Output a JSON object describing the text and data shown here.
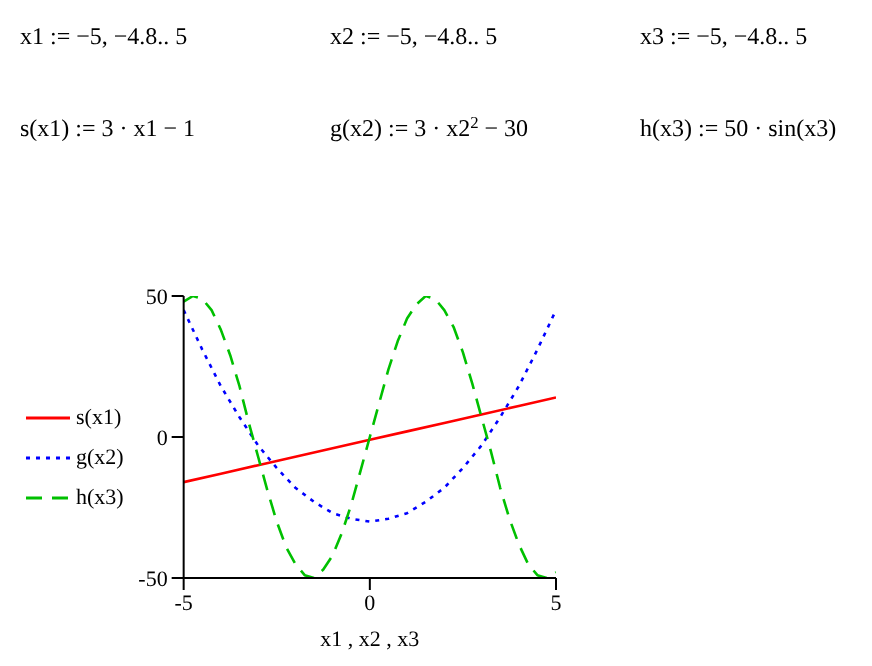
{
  "chart_data": {
    "type": "line",
    "xlabel": "x1 , x2 , x3",
    "annotations": [
      "x1 := −5, −4.8.. 5",
      "x2 := −5, −4.8.. 5",
      "x3 := −5, −4.8.. 5",
      "s(x1) := 3 · x1 − 1",
      "g(x2) := 3 · x2$^{2}$ − 30",
      "h(x3) := 50 · sin(x3)"
    ],
    "xlim": [
      -5,
      5
    ],
    "xticks": [
      -5,
      0,
      5
    ],
    "ylim": [
      -50,
      50
    ],
    "yticks": [
      -50,
      0,
      50
    ],
    "legend": "left",
    "grid": false,
    "marker": "none",
    "series": [
      {
        "name": "s(x1)",
        "color": "#ff0000",
        "line_style": "solid",
        "x": [
          -5,
          -4,
          -3,
          -2,
          -1,
          0,
          1,
          2,
          3,
          4,
          5
        ],
        "values": [
          -16,
          -13,
          -10,
          -7,
          -4,
          -1,
          2,
          5,
          8,
          11,
          14
        ]
      },
      {
        "name": "g(x2)",
        "color": "#0000ff",
        "line_style": "dotted",
        "x": [
          -5,
          -4.5,
          -4,
          -3.5,
          -3,
          -2.5,
          -2,
          -1.5,
          -1,
          -0.5,
          0,
          0.5,
          1,
          1.5,
          2,
          2.5,
          3,
          3.5,
          4,
          4.5,
          5
        ],
        "values": [
          45,
          31,
          18,
          7,
          -3,
          -11,
          -18,
          -23,
          -27,
          -29,
          -30,
          -29,
          -27,
          -23,
          -18,
          -11,
          -3,
          7,
          18,
          31,
          45
        ]
      },
      {
        "name": "h(x3)",
        "color": "#00c000",
        "line_style": "dashed",
        "x": [
          -5,
          -4.75,
          -4.5,
          -4.25,
          -4,
          -3.75,
          -3.5,
          -3.25,
          -3,
          -2.75,
          -2.5,
          -2.25,
          -2,
          -1.75,
          -1.5,
          -1.25,
          -1,
          -0.75,
          -0.5,
          -0.25,
          0,
          0.25,
          0.5,
          0.75,
          1,
          1.25,
          1.5,
          1.75,
          2,
          2.25,
          2.5,
          2.75,
          3,
          3.25,
          3.5,
          3.75,
          4,
          4.25,
          4.5,
          4.75,
          5
        ],
        "values": [
          48,
          50,
          49,
          45,
          38,
          29,
          18,
          5,
          -7,
          -19,
          -30,
          -39,
          -45,
          -49,
          -50,
          -47,
          -42,
          -34,
          -24,
          -12,
          0,
          12,
          24,
          34,
          42,
          47,
          50,
          49,
          45,
          39,
          30,
          19,
          7,
          -5,
          -18,
          -29,
          -38,
          -45,
          -49,
          -50,
          -48
        ]
      }
    ]
  }
}
